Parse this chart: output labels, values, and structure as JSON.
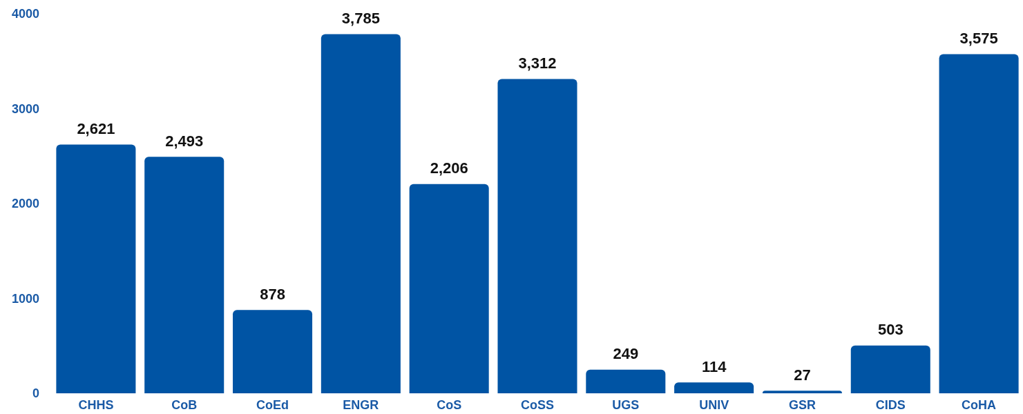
{
  "chart_data": {
    "type": "bar",
    "categories": [
      "CHHS",
      "CoB",
      "CoEd",
      "ENGR",
      "CoS",
      "CoSS",
      "UGS",
      "UNIV",
      "GSR",
      "CIDS",
      "CoHA"
    ],
    "values": [
      2621,
      2493,
      878,
      3785,
      2206,
      3312,
      249,
      114,
      27,
      503,
      3575
    ],
    "value_labels": [
      "2,621",
      "2,493",
      "878",
      "3,785",
      "2,206",
      "3,312",
      "249",
      "114",
      "27",
      "503",
      "3,575"
    ],
    "color": "#0054a4",
    "ylim": [
      0,
      4000
    ],
    "yticks": [
      0,
      1000,
      2000,
      3000,
      4000
    ],
    "grid": false
  }
}
